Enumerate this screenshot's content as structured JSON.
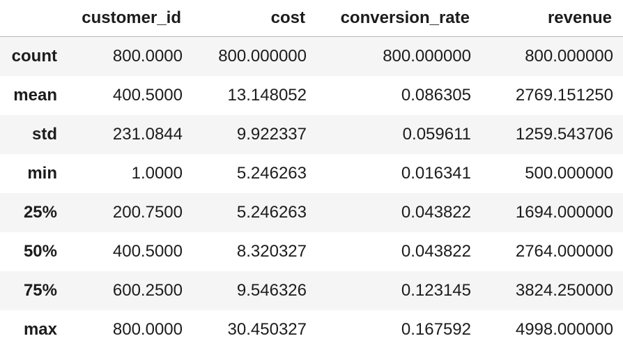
{
  "table": {
    "columns": [
      "",
      "customer_id",
      "cost",
      "conversion_rate",
      "revenue"
    ],
    "rows": [
      {
        "label": "count",
        "values": [
          "800.0000",
          "800.000000",
          "800.000000",
          "800.000000"
        ]
      },
      {
        "label": "mean",
        "values": [
          "400.5000",
          "13.148052",
          "0.086305",
          "2769.151250"
        ]
      },
      {
        "label": "std",
        "values": [
          "231.0844",
          "9.922337",
          "0.059611",
          "1259.543706"
        ]
      },
      {
        "label": "min",
        "values": [
          "1.0000",
          "5.246263",
          "0.016341",
          "500.000000"
        ]
      },
      {
        "label": "25%",
        "values": [
          "200.7500",
          "5.246263",
          "0.043822",
          "1694.000000"
        ]
      },
      {
        "label": "50%",
        "values": [
          "400.5000",
          "8.320327",
          "0.043822",
          "2764.000000"
        ]
      },
      {
        "label": "75%",
        "values": [
          "600.2500",
          "9.546326",
          "0.123145",
          "3824.250000"
        ]
      },
      {
        "label": "max",
        "values": [
          "800.0000",
          "30.450327",
          "0.167592",
          "4998.000000"
        ]
      }
    ]
  }
}
